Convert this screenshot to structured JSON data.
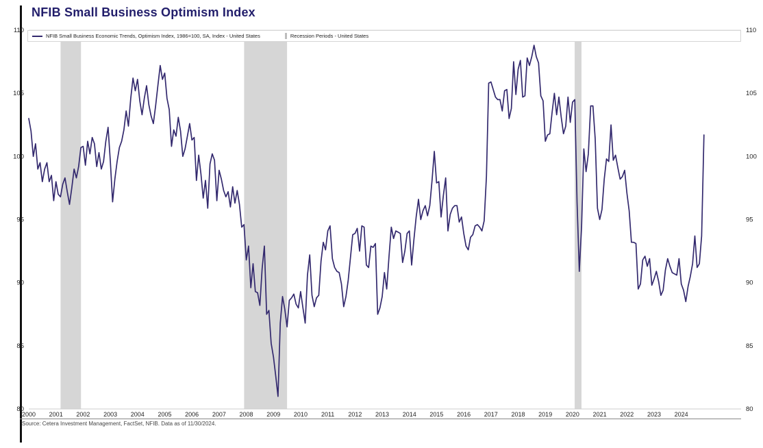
{
  "title": "NFIB Small Business Optimism Index",
  "legend": {
    "items": [
      {
        "label": "NFIB Small Business Economic Trends, Optimism Index, 1986=100, SA, Index - United States",
        "type": "line",
        "color": "#33296e"
      },
      {
        "label": "Recession Periods - United States",
        "type": "band",
        "color": "#d6d6d6"
      }
    ]
  },
  "source": "Source: Cetera Investment Management, FactSet, NFIB. Data as of 11/30/2024.",
  "chart_data": {
    "type": "line",
    "title": "NFIB Small Business Optimism Index",
    "frequency": "monthly",
    "x_start": "2000-01",
    "x_end": "2024-11",
    "ylim": [
      80,
      110
    ],
    "yticks": [
      80,
      85,
      90,
      95,
      100,
      105,
      110
    ],
    "xticks": [
      2000,
      2001,
      2002,
      2003,
      2004,
      2005,
      2006,
      2007,
      2008,
      2009,
      2010,
      2011,
      2012,
      2013,
      2014,
      2015,
      2016,
      2017,
      2018,
      2019,
      2020,
      2021,
      2022,
      2023,
      2024
    ],
    "line_color": "#33296e",
    "band_color": "#d6d6d6",
    "grid": false,
    "legend_position": "top-left",
    "recession_bands": [
      [
        2001.17,
        2001.92
      ],
      [
        2007.92,
        2009.5
      ],
      [
        2020.08,
        2020.33
      ]
    ],
    "series": [
      {
        "name": "NFIB Small Business Economic Trends, Optimism Index, 1986=100, SA, Index - United States",
        "values": [
          103.0,
          102.0,
          100.0,
          101.0,
          99.0,
          99.5,
          98.0,
          99.0,
          99.5,
          98.0,
          98.5,
          96.5,
          98.0,
          97.0,
          96.8,
          97.8,
          98.3,
          97.2,
          96.2,
          97.5,
          99.0,
          98.3,
          99.2,
          100.7,
          100.8,
          99.3,
          101.2,
          100.2,
          101.5,
          101.0,
          99.2,
          100.3,
          99.0,
          99.6,
          101.2,
          102.3,
          99.6,
          96.4,
          98.2,
          99.6,
          100.7,
          101.2,
          102.1,
          103.6,
          102.4,
          104.6,
          106.2,
          105.2,
          106.1,
          104.4,
          103.3,
          104.6,
          105.6,
          104.1,
          103.2,
          102.6,
          104.0,
          105.6,
          107.2,
          106.1,
          106.6,
          104.6,
          103.7,
          100.8,
          102.1,
          101.6,
          103.1,
          102.0,
          100.0,
          100.6,
          101.6,
          102.6,
          101.3,
          101.5,
          98.1,
          100.1,
          98.6,
          96.7,
          98.1,
          95.9,
          99.4,
          100.2,
          99.7,
          96.5,
          98.9,
          98.2,
          97.3,
          96.8,
          97.2,
          96.0,
          97.6,
          96.3,
          97.3,
          96.2,
          94.4,
          94.6,
          91.8,
          92.9,
          89.6,
          91.5,
          89.3,
          89.2,
          88.2,
          91.1,
          92.9,
          87.5,
          87.8,
          85.2,
          84.1,
          82.6,
          81.0,
          86.8,
          88.9,
          87.9,
          86.5,
          88.6,
          88.8,
          89.1,
          88.3,
          88.0,
          89.3,
          88.0,
          86.8,
          90.6,
          92.2,
          89.0,
          88.1,
          88.8,
          89.0,
          91.7,
          93.2,
          92.6,
          94.1,
          94.5,
          91.9,
          91.2,
          90.9,
          90.8,
          89.9,
          88.1,
          88.9,
          90.2,
          92.0,
          93.8,
          93.9,
          94.3,
          92.5,
          94.5,
          94.4,
          91.4,
          91.2,
          92.9,
          92.8,
          93.1,
          87.5,
          88.0,
          88.9,
          90.8,
          89.5,
          92.1,
          94.4,
          93.5,
          94.1,
          94.0,
          93.9,
          91.6,
          92.5,
          93.9,
          94.1,
          91.4,
          93.4,
          95.2,
          96.6,
          95.0,
          95.7,
          96.1,
          95.3,
          96.1,
          98.1,
          100.4,
          97.9,
          98.0,
          95.2,
          96.9,
          98.3,
          94.1,
          95.4,
          95.9,
          96.1,
          96.1,
          94.8,
          95.2,
          93.9,
          92.9,
          92.6,
          93.6,
          93.8,
          94.5,
          94.6,
          94.4,
          94.1,
          94.9,
          98.4,
          105.8,
          105.9,
          105.3,
          104.7,
          104.5,
          104.5,
          103.6,
          105.2,
          105.3,
          103.0,
          103.8,
          107.5,
          104.9,
          106.9,
          107.6,
          104.7,
          104.8,
          107.8,
          107.2,
          107.9,
          108.8,
          107.9,
          107.4,
          104.8,
          104.4,
          101.2,
          101.7,
          101.8,
          103.5,
          105.0,
          103.3,
          104.7,
          103.1,
          101.8,
          102.4,
          104.7,
          102.7,
          104.3,
          104.5,
          96.4,
          90.9,
          94.4,
          100.6,
          98.8,
          100.2,
          104.0,
          104.0,
          101.4,
          95.9,
          95.0,
          95.8,
          98.2,
          99.8,
          99.6,
          102.5,
          99.7,
          100.1,
          99.1,
          98.2,
          98.4,
          98.9,
          97.1,
          95.7,
          93.2,
          93.2,
          93.1,
          89.5,
          89.9,
          91.8,
          92.1,
          91.3,
          91.9,
          89.8,
          90.3,
          90.9,
          90.1,
          89.0,
          89.4,
          91.0,
          91.9,
          91.3,
          90.8,
          90.7,
          90.6,
          91.9,
          89.9,
          89.4,
          88.5,
          89.7,
          90.5,
          91.5,
          93.7,
          91.2,
          91.5,
          93.7,
          101.7
        ]
      }
    ]
  }
}
